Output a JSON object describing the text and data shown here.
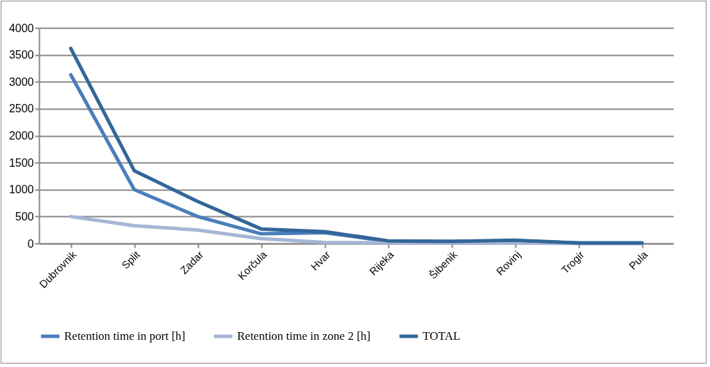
{
  "chart_data": {
    "type": "line",
    "categories": [
      "Dubrovnik",
      "Split",
      "Zadar",
      "Korčula",
      "Hvar",
      "Rijeka",
      "Šibenik",
      "Rovinj",
      "Trogir",
      "Pula"
    ],
    "series": [
      {
        "name": "Retention time in port [h]",
        "color": "#4a7ebb",
        "values": [
          3130,
          1000,
          500,
          180,
          200,
          40,
          40,
          50,
          10,
          10
        ]
      },
      {
        "name": "Retention time in zone 2 [h]",
        "color": "#a5b5d6",
        "values": [
          500,
          330,
          250,
          90,
          20,
          10,
          10,
          10,
          0,
          0
        ]
      },
      {
        "name": "TOTAL",
        "color": "#336699",
        "values": [
          3620,
          1350,
          780,
          270,
          220,
          50,
          40,
          60,
          10,
          10
        ]
      }
    ],
    "ylim": [
      0,
      4000
    ],
    "yticks": [
      0,
      500,
      1000,
      1500,
      2000,
      2500,
      3000,
      3500,
      4000
    ],
    "grid": "y",
    "legend": "bottom",
    "marker": "none",
    "line_style": "solid"
  }
}
